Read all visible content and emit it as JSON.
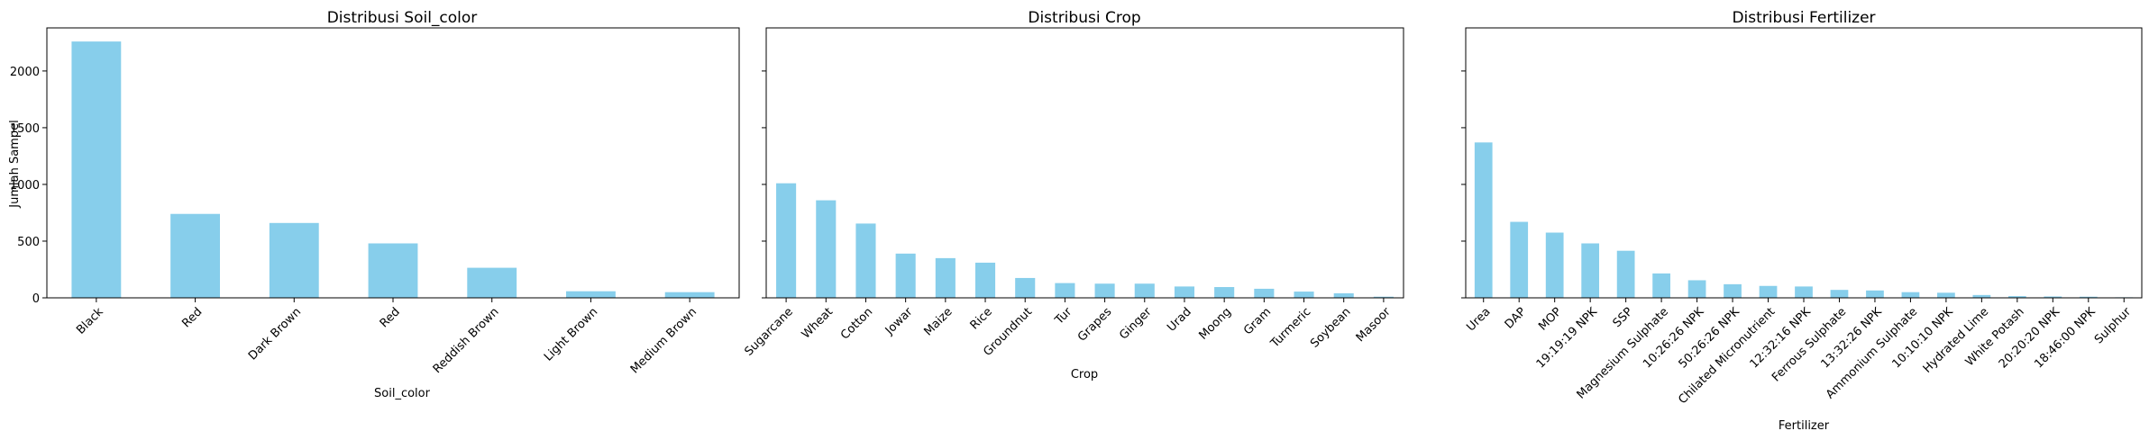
{
  "figure": {
    "shared_ylabel": "Jumlah Sampel",
    "bar_color": "#87CEEB"
  },
  "chart_data": [
    {
      "type": "bar",
      "title": "Distribusi Soil_color",
      "xlabel": "Soil_color",
      "ylabel": "Jumlah Sampel",
      "categories": [
        "Black",
        "Red",
        "Dark Brown",
        "Red",
        "Reddish Brown",
        "Light Brown",
        "Medium Brown"
      ],
      "values": [
        2260,
        740,
        660,
        480,
        265,
        58,
        50
      ],
      "ylim": [
        0,
        2380
      ],
      "yticks": [
        0,
        500,
        1000,
        1500,
        2000
      ],
      "grid": false
    },
    {
      "type": "bar",
      "title": "Distribusi Crop",
      "xlabel": "Crop",
      "ylabel": "",
      "categories": [
        "Sugarcane",
        "Wheat",
        "Cotton",
        "Jowar",
        "Maize",
        "Rice",
        "Groundnut",
        "Tur",
        "Grapes",
        "Ginger",
        "Urad",
        "Moong",
        "Gram",
        "Turmeric",
        "Soybean",
        "Masoor"
      ],
      "values": [
        1010,
        860,
        655,
        390,
        350,
        310,
        175,
        130,
        125,
        125,
        100,
        95,
        80,
        55,
        40,
        10
      ],
      "ylim": [
        0,
        2380
      ],
      "yticks": [
        0,
        500,
        1000,
        1500,
        2000
      ],
      "grid": false
    },
    {
      "type": "bar",
      "title": "Distribusi Fertilizer",
      "xlabel": "Fertilizer",
      "ylabel": "",
      "categories": [
        "Urea",
        "DAP",
        "MOP",
        "19:19:19 NPK",
        "SSP",
        "Magnesium Sulphate",
        "10:26:26 NPK",
        "50:26:26 NPK",
        "Chilated Micronutrient",
        "12:32:16 NPK",
        "Ferrous Sulphate",
        "13:32:26 NPK",
        "Ammonium Sulphate",
        "10:10:10 NPK",
        "Hydrated Lime",
        "White Potash",
        "20:20:20 NPK",
        "18:46:00 NPK",
        "Sulphur"
      ],
      "values": [
        1370,
        670,
        575,
        480,
        415,
        215,
        155,
        120,
        105,
        100,
        70,
        65,
        50,
        45,
        25,
        15,
        12,
        10,
        5
      ],
      "ylim": [
        0,
        2380
      ],
      "yticks": [
        0,
        500,
        1000,
        1500,
        2000
      ],
      "grid": false
    }
  ]
}
